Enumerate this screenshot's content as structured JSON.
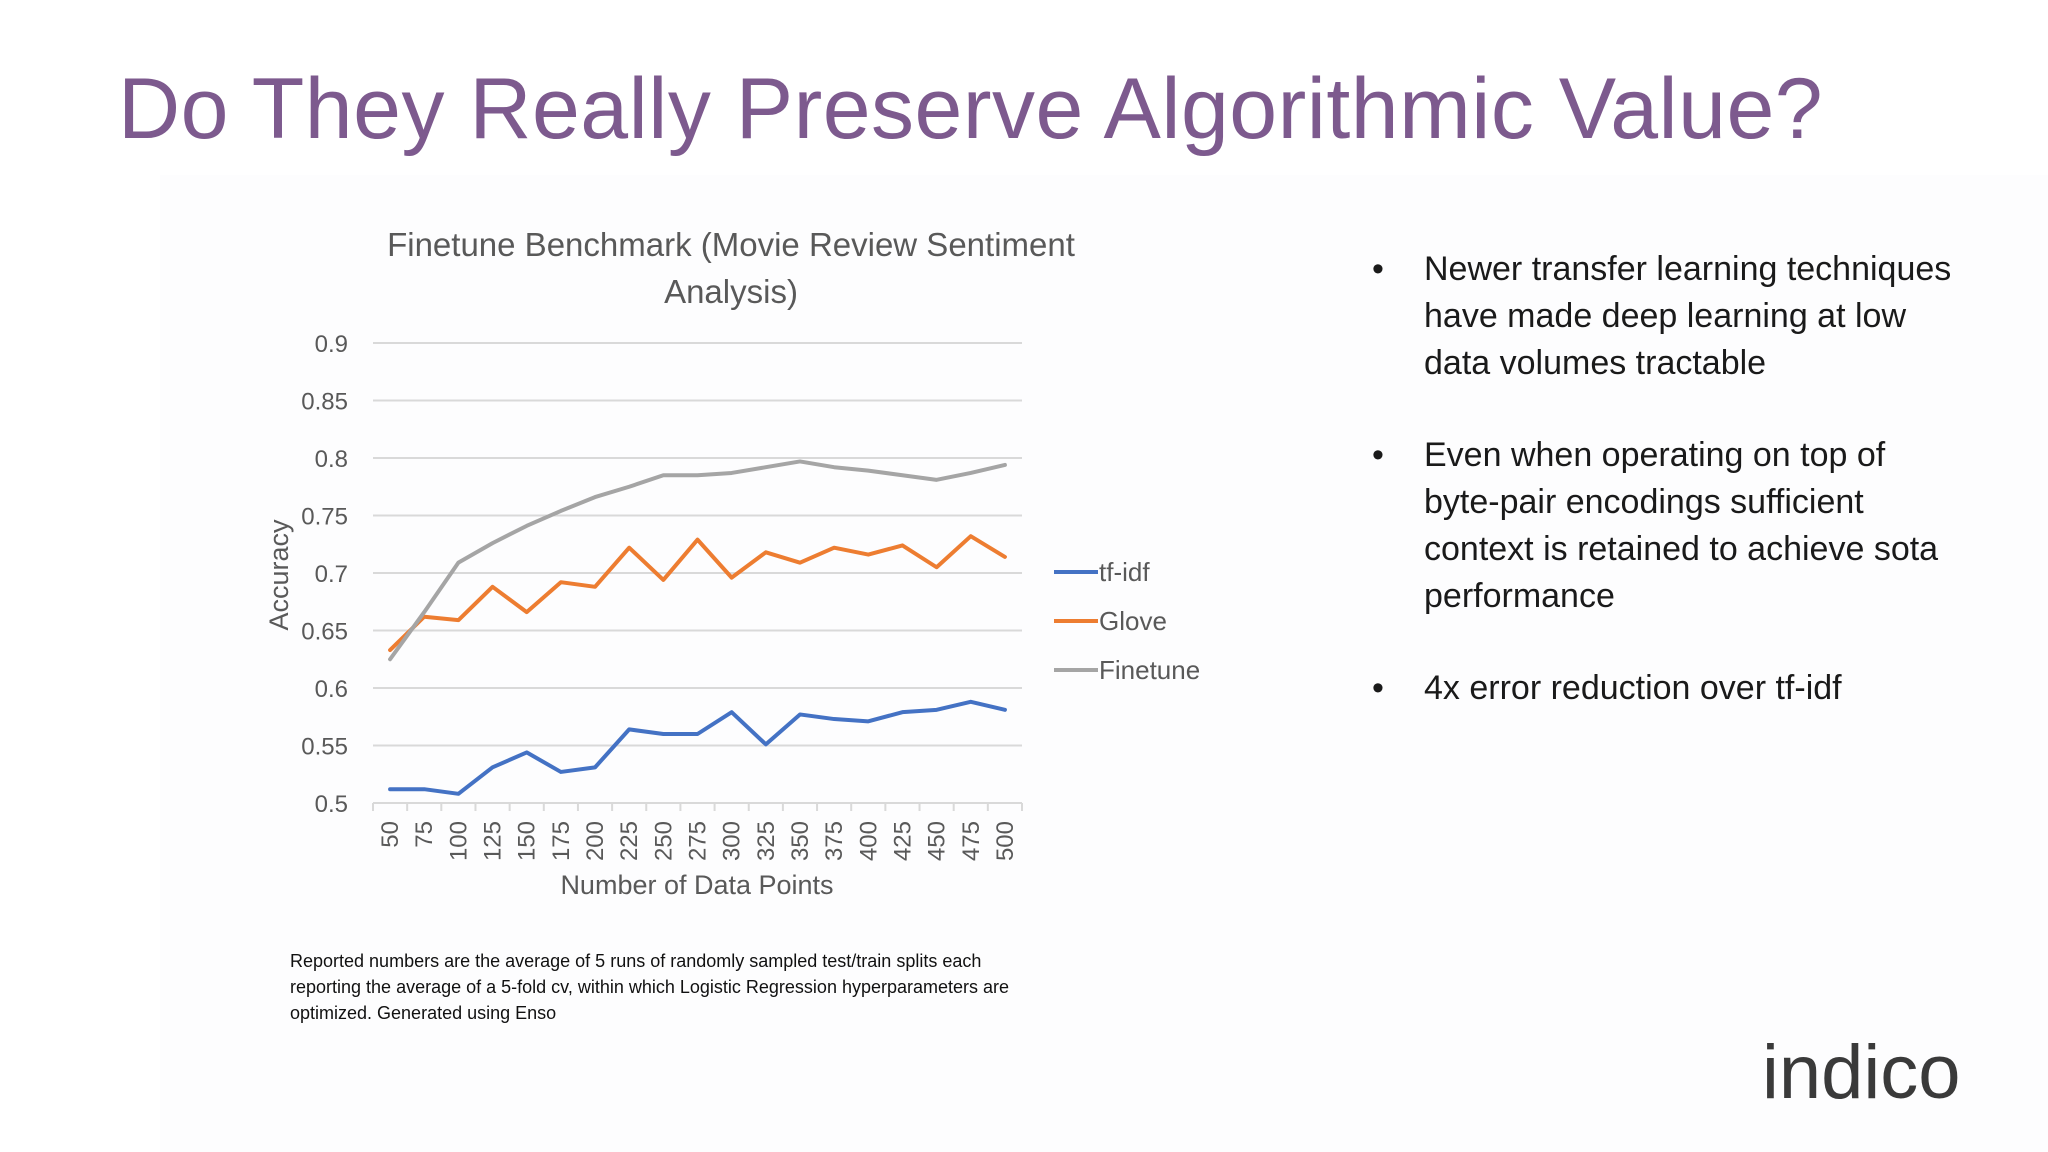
{
  "slide": {
    "title": "Do They Really Preserve Algorithmic Value?",
    "bullets": [
      "Newer transfer learning techniques have made deep learning at low data volumes tractable",
      "Even when operating on top of byte-pair encodings sufficient context is retained to achieve sota performance",
      "4x error reduction over tf-idf"
    ],
    "footnote": "Reported numbers are the average of 5 runs of randomly sampled test/train splits each reporting the average of a 5-fold cv, within which Logistic Regression hyperparameters are optimized. Generated using Enso",
    "logo_text": "indico"
  },
  "chart_data": {
    "type": "line",
    "title_lines": [
      "Finetune Benchmark (Movie Review Sentiment",
      "Analysis)"
    ],
    "xlabel": "Number of Data Points",
    "ylabel": "Accuracy",
    "categories": [
      "50",
      "75",
      "100",
      "125",
      "150",
      "175",
      "200",
      "225",
      "250",
      "275",
      "300",
      "325",
      "350",
      "375",
      "400",
      "425",
      "450",
      "475",
      "500"
    ],
    "yticks": [
      "0.5",
      "0.55",
      "0.6",
      "0.65",
      "0.7",
      "0.75",
      "0.8",
      "0.85",
      "0.9"
    ],
    "ylim": [
      0.5,
      0.9
    ],
    "grid": true,
    "legend_position": "right",
    "series": [
      {
        "name": "tf-idf",
        "color": "#4472c4",
        "values": [
          0.512,
          0.512,
          0.508,
          0.531,
          0.544,
          0.527,
          0.531,
          0.564,
          0.56,
          0.56,
          0.579,
          0.551,
          0.577,
          0.573,
          0.571,
          0.579,
          0.581,
          0.588,
          0.581
        ]
      },
      {
        "name": "Glove",
        "color": "#ed7d31",
        "values": [
          0.633,
          0.662,
          0.659,
          0.688,
          0.666,
          0.692,
          0.688,
          0.722,
          0.694,
          0.729,
          0.696,
          0.718,
          0.709,
          0.722,
          0.716,
          0.724,
          0.705,
          0.732,
          0.714
        ]
      },
      {
        "name": "Finetune",
        "color": "#a5a5a5",
        "values": [
          0.625,
          0.666,
          0.709,
          0.726,
          0.741,
          0.754,
          0.766,
          0.775,
          0.785,
          0.785,
          0.787,
          0.792,
          0.797,
          0.792,
          0.789,
          0.785,
          0.781,
          0.787,
          0.794
        ]
      }
    ],
    "colors": {
      "axis_text": "#595959",
      "grid": "#d9d9d9"
    }
  }
}
